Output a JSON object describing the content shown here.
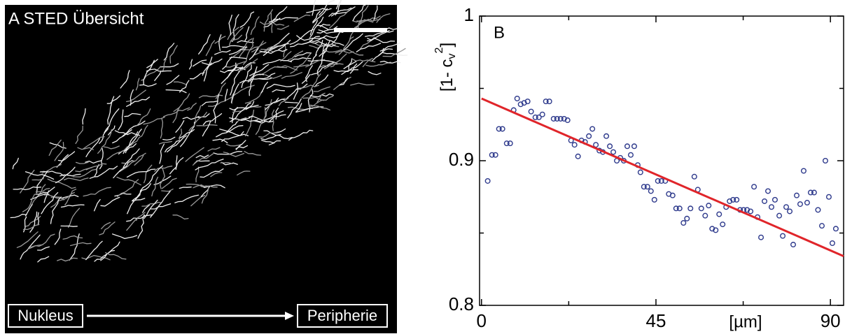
{
  "image": {
    "title": "A STED Übersicht",
    "start_label": "Nukleus",
    "end_label": "Peripherie"
  },
  "chart_data": {
    "type": "scatter",
    "panel_label": "B",
    "xlabel": "[µm]",
    "ylabel": {
      "prefix": "[1- c",
      "sub": "v",
      "sup": "2",
      "suffix": "]"
    },
    "xlim": [
      -0.5,
      93.4
    ],
    "ylim": [
      0.8,
      1
    ],
    "xticks": [
      0,
      45,
      90
    ],
    "yticks": [
      0.8,
      0.9,
      1
    ],
    "xminor": [
      22.5,
      67.5
    ],
    "yminor": [
      0.85,
      0.95
    ],
    "series": [
      {
        "type": "scatter",
        "color": "#2e3a8c",
        "x": [
          1.6,
          2.7,
          3.6,
          4.5,
          5.4,
          6.5,
          7.4,
          8.3,
          9.2,
          10.1,
          11.0,
          11.9,
          12.8,
          13.9,
          14.8,
          15.7,
          16.6,
          17.5,
          18.6,
          19.5,
          20.4,
          21.3,
          22.2,
          23.1,
          24.0,
          24.9,
          25.8,
          26.7,
          27.7,
          28.6,
          29.5,
          30.4,
          31.3,
          32.2,
          33.1,
          34.0,
          34.9,
          35.8,
          36.7,
          37.6,
          38.5,
          39.4,
          40.3,
          41.0,
          41.9,
          42.8,
          43.7,
          44.6,
          45.5,
          46.4,
          47.4,
          48.3,
          49.3,
          50.2,
          51.1,
          52.1,
          53.0,
          53.9,
          54.9,
          55.8,
          56.7,
          57.7,
          58.6,
          59.5,
          60.4,
          61.3,
          62.2,
          63.1,
          64.0,
          64.9,
          65.8,
          66.7,
          67.6,
          68.5,
          69.4,
          70.3,
          71.2,
          72.1,
          73.0,
          73.9,
          74.8,
          75.7,
          76.8,
          77.7,
          78.6,
          79.5,
          80.4,
          81.3,
          82.2,
          83.1,
          84.0,
          84.9,
          85.8,
          86.8,
          87.8,
          88.7,
          89.6,
          90.5,
          91.4
        ],
        "values": [
          0.886,
          0.904,
          0.904,
          0.922,
          0.922,
          0.912,
          0.912,
          0.935,
          0.943,
          0.939,
          0.94,
          0.941,
          0.934,
          0.93,
          0.93,
          0.932,
          0.941,
          0.941,
          0.929,
          0.929,
          0.929,
          0.929,
          0.928,
          0.914,
          0.911,
          0.903,
          0.914,
          0.913,
          0.917,
          0.922,
          0.911,
          0.907,
          0.906,
          0.917,
          0.91,
          0.906,
          0.9,
          0.902,
          0.9,
          0.91,
          0.904,
          0.91,
          0.897,
          0.892,
          0.882,
          0.882,
          0.879,
          0.873,
          0.886,
          0.886,
          0.886,
          0.877,
          0.876,
          0.867,
          0.867,
          0.857,
          0.86,
          0.867,
          0.889,
          0.88,
          0.867,
          0.862,
          0.869,
          0.853,
          0.852,
          0.863,
          0.856,
          0.868,
          0.872,
          0.873,
          0.873,
          0.866,
          0.866,
          0.866,
          0.865,
          0.882,
          0.861,
          0.847,
          0.872,
          0.879,
          0.868,
          0.873,
          0.862,
          0.848,
          0.868,
          0.865,
          0.842,
          0.876,
          0.87,
          0.893,
          0.871,
          0.878,
          0.878,
          0.866,
          0.855,
          0.9,
          0.875,
          0.843,
          0.853
        ]
      },
      {
        "type": "line",
        "color": "#e0252a",
        "x": [
          0,
          93.4
        ],
        "values": [
          0.943,
          0.834
        ]
      }
    ]
  }
}
